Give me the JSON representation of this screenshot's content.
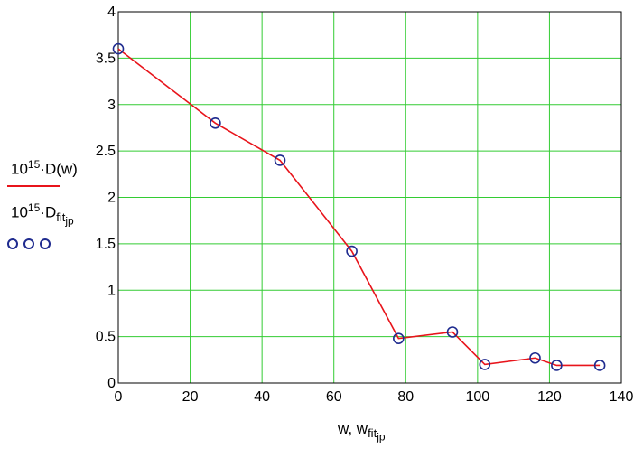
{
  "chart_data": {
    "type": "line",
    "xlim": [
      0,
      140
    ],
    "ylim": [
      0,
      4
    ],
    "x_ticks": [
      "0",
      "20",
      "40",
      "60",
      "80",
      "100",
      "120",
      "140"
    ],
    "y_ticks": [
      "0",
      "0.5",
      "1",
      "1.5",
      "2",
      "2.5",
      "3",
      "3.5",
      "4"
    ],
    "grid": true,
    "x_label": {
      "main": "w, w",
      "sub": "fit",
      "subsub": "jp"
    },
    "legend": [
      {
        "prefix": "10",
        "exp": "15",
        "body": "·D(w)",
        "color": "#e8141b",
        "style": "line"
      },
      {
        "prefix": "10",
        "exp": "15",
        "body": "·D",
        "sub": "fit",
        "subsub": "jp",
        "color": "#1f2b8f",
        "style": "circles"
      }
    ],
    "series": [
      {
        "style": "line",
        "color": "#e8141b",
        "x": [
          0,
          27,
          45,
          65,
          78,
          93,
          102,
          116,
          122,
          134
        ],
        "y": [
          3.6,
          2.8,
          2.4,
          1.42,
          0.48,
          0.55,
          0.2,
          0.27,
          0.19,
          0.19
        ]
      },
      {
        "style": "circles",
        "color": "#1f2b8f",
        "x": [
          0,
          27,
          45,
          65,
          78,
          93,
          102,
          116,
          122,
          134
        ],
        "y": [
          3.6,
          2.8,
          2.4,
          1.42,
          0.48,
          0.55,
          0.2,
          0.27,
          0.19,
          0.19
        ]
      }
    ]
  }
}
